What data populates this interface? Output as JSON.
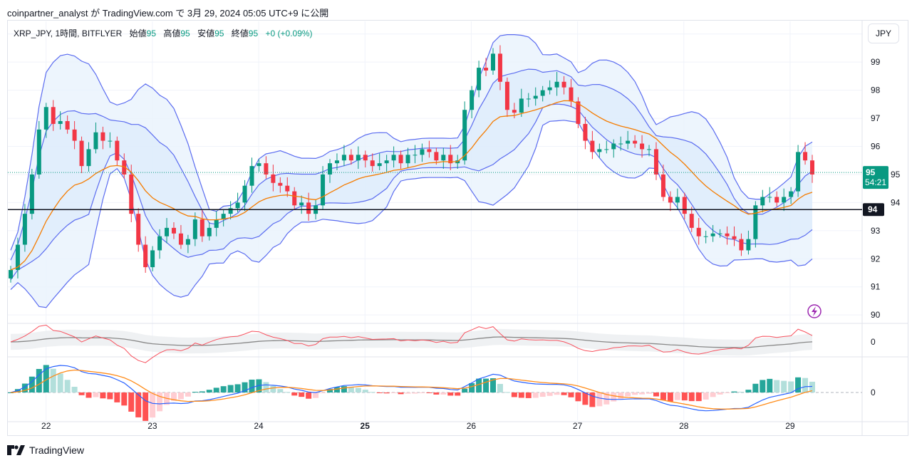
{
  "header": {
    "published": "coinpartner_analyst が TradingView.com で 3月 29, 2024 05:05 UTC+9 に公開"
  },
  "legend": {
    "symbol": "XRP_JPY, 1時間, BITFLYER",
    "open_label": "始値",
    "open": "95",
    "high_label": "高値",
    "high": "95",
    "low_label": "安値",
    "low": "95",
    "close_label": "終値",
    "close": "95",
    "change": "+0 (+0.09%)"
  },
  "currency_button": "JPY",
  "price_label": {
    "value": "95",
    "countdown": "54:21"
  },
  "hline_label": "94",
  "pane2_zero": "0",
  "pane3_zero": "0",
  "branding": "TradingView",
  "colors": {
    "up": "#089981",
    "down": "#f23645",
    "band": "#5b6cf0",
    "band_fill": "#e8f2fd",
    "ma": "#f57c00",
    "hline": "#131722",
    "grid": "#f0f3fa",
    "macd": "#2962ff",
    "signal": "#ff8c1a",
    "osc": "#f7525f",
    "osc_slow": "#888888"
  },
  "chart_data": {
    "type": "candlestick",
    "title": "",
    "ylim": [
      89.75,
      100.45
    ],
    "y_ticks": [
      100,
      99,
      98,
      97,
      96,
      95,
      94,
      93,
      92,
      91,
      90
    ],
    "x_range": [
      "2024-03-21 16:00",
      "2024-03-29 05:00"
    ],
    "x_ticks": [
      {
        "label": "22",
        "date": "2024-03-22 00:00",
        "bold": false
      },
      {
        "label": "23",
        "date": "2024-03-23 00:00",
        "bold": false
      },
      {
        "label": "24",
        "date": "2024-03-24 00:00",
        "bold": false
      },
      {
        "label": "25",
        "date": "2024-03-25 00:00",
        "bold": true
      },
      {
        "label": "26",
        "date": "2024-03-26 00:00",
        "bold": false
      },
      {
        "label": "27",
        "date": "2024-03-27 00:00",
        "bold": false
      },
      {
        "label": "28",
        "date": "2024-03-28 00:00",
        "bold": false
      },
      {
        "label": "29",
        "date": "2024-03-29 00:00",
        "bold": false
      }
    ],
    "closes": [
      91.6,
      92.5,
      93.6,
      95.0,
      96.6,
      97.4,
      96.8,
      96.9,
      96.6,
      96.2,
      95.3,
      95.9,
      96.5,
      96.2,
      96.2,
      95.5,
      95.0,
      93.6,
      92.5,
      91.7,
      92.3,
      92.8,
      93.1,
      92.9,
      92.5,
      92.7,
      93.4,
      92.8,
      93.1,
      93.4,
      93.6,
      93.8,
      94.0,
      94.6,
      95.3,
      95.4,
      95.0,
      94.7,
      94.6,
      94.4,
      93.9,
      94.0,
      93.6,
      93.9,
      95.0,
      95.4,
      95.5,
      95.7,
      95.5,
      95.7,
      95.5,
      95.3,
      95.4,
      95.5,
      95.7,
      95.4,
      95.7,
      95.7,
      95.9,
      95.8,
      95.5,
      95.7,
      95.4,
      95.5,
      97.3,
      98.0,
      98.8,
      98.7,
      99.3,
      98.3,
      97.3,
      97.2,
      97.7,
      97.7,
      97.8,
      98.0,
      98.1,
      98.3,
      98.1,
      97.6,
      96.8,
      96.2,
      95.8,
      95.9,
      95.9,
      96.1,
      96.1,
      96.2,
      96.1,
      95.9,
      95.9,
      95.0,
      94.2,
      94.0,
      94.2,
      93.6,
      93.1,
      92.8,
      92.8,
      92.9,
      92.9,
      92.8,
      92.7,
      92.3,
      92.7,
      93.9,
      94.2,
      94.2,
      94.0,
      94.2,
      94.4,
      95.8,
      95.5,
      95.0
    ],
    "horizontal_line": 93.75,
    "last_price": 95.07,
    "indicators": [
      "Bollinger Bands",
      "Moving Average",
      "Oscillator",
      "MACD"
    ]
  }
}
